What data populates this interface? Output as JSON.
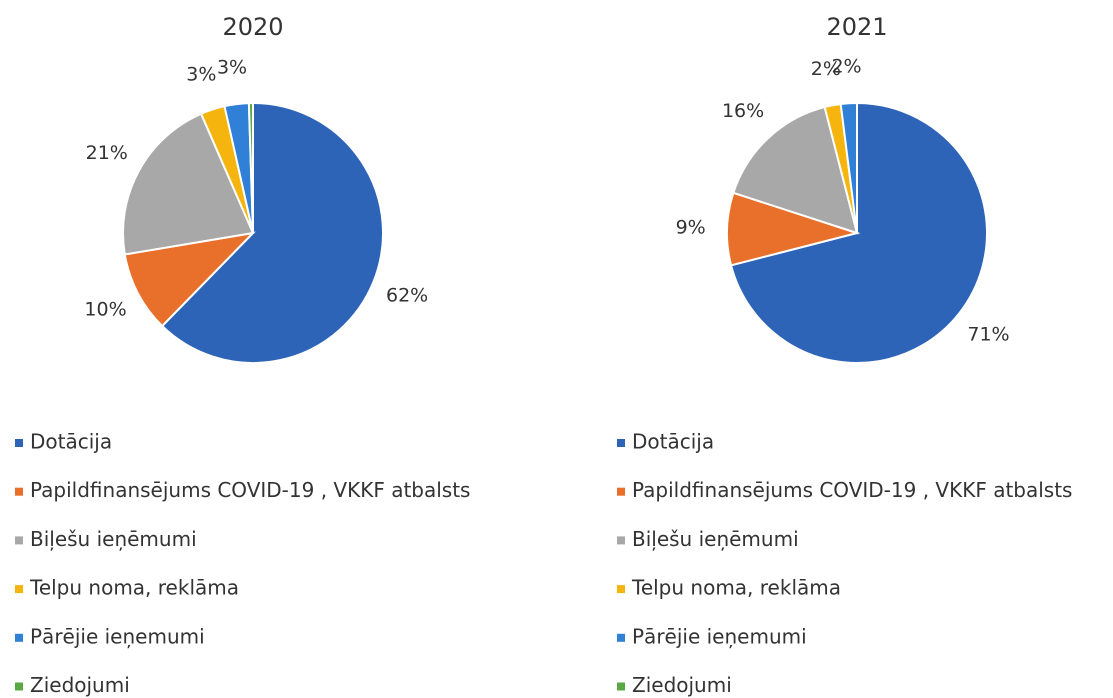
{
  "chart_data": [
    {
      "type": "pie",
      "title": "2020",
      "categories": [
        "Dotācija",
        "Papildfinansējums COVID-19 , VKKF atbalsts",
        "Biļešu ieņēmumi",
        "Telpu noma, reklāma",
        "Pārējie ieņemumi",
        "Ziedojumi"
      ],
      "values": [
        62,
        10,
        21,
        3,
        3,
        0.5
      ],
      "value_labels": [
        "62%",
        "10%",
        "21%",
        "3%",
        "3%",
        null
      ],
      "colors": [
        "#2e64b8",
        "#e8702a",
        "#a8a8a8",
        "#f5b50e",
        "#2f80d6",
        "#5aa843"
      ]
    },
    {
      "type": "pie",
      "title": "2021",
      "categories": [
        "Dotācija",
        "Papildfinansējums COVID-19 , VKKF atbalsts",
        "Biļešu ieņēmumi",
        "Telpu noma, reklāma",
        "Pārējie ieņemumi",
        "Ziedojumi"
      ],
      "values": [
        71,
        9,
        16,
        2,
        2,
        0
      ],
      "value_labels": [
        "71%",
        "9%",
        "16%",
        "2%",
        "2%",
        null
      ],
      "colors": [
        "#2e64b8",
        "#e8702a",
        "#a8a8a8",
        "#f5b50e",
        "#2f80d6",
        "#5aa843"
      ]
    }
  ]
}
